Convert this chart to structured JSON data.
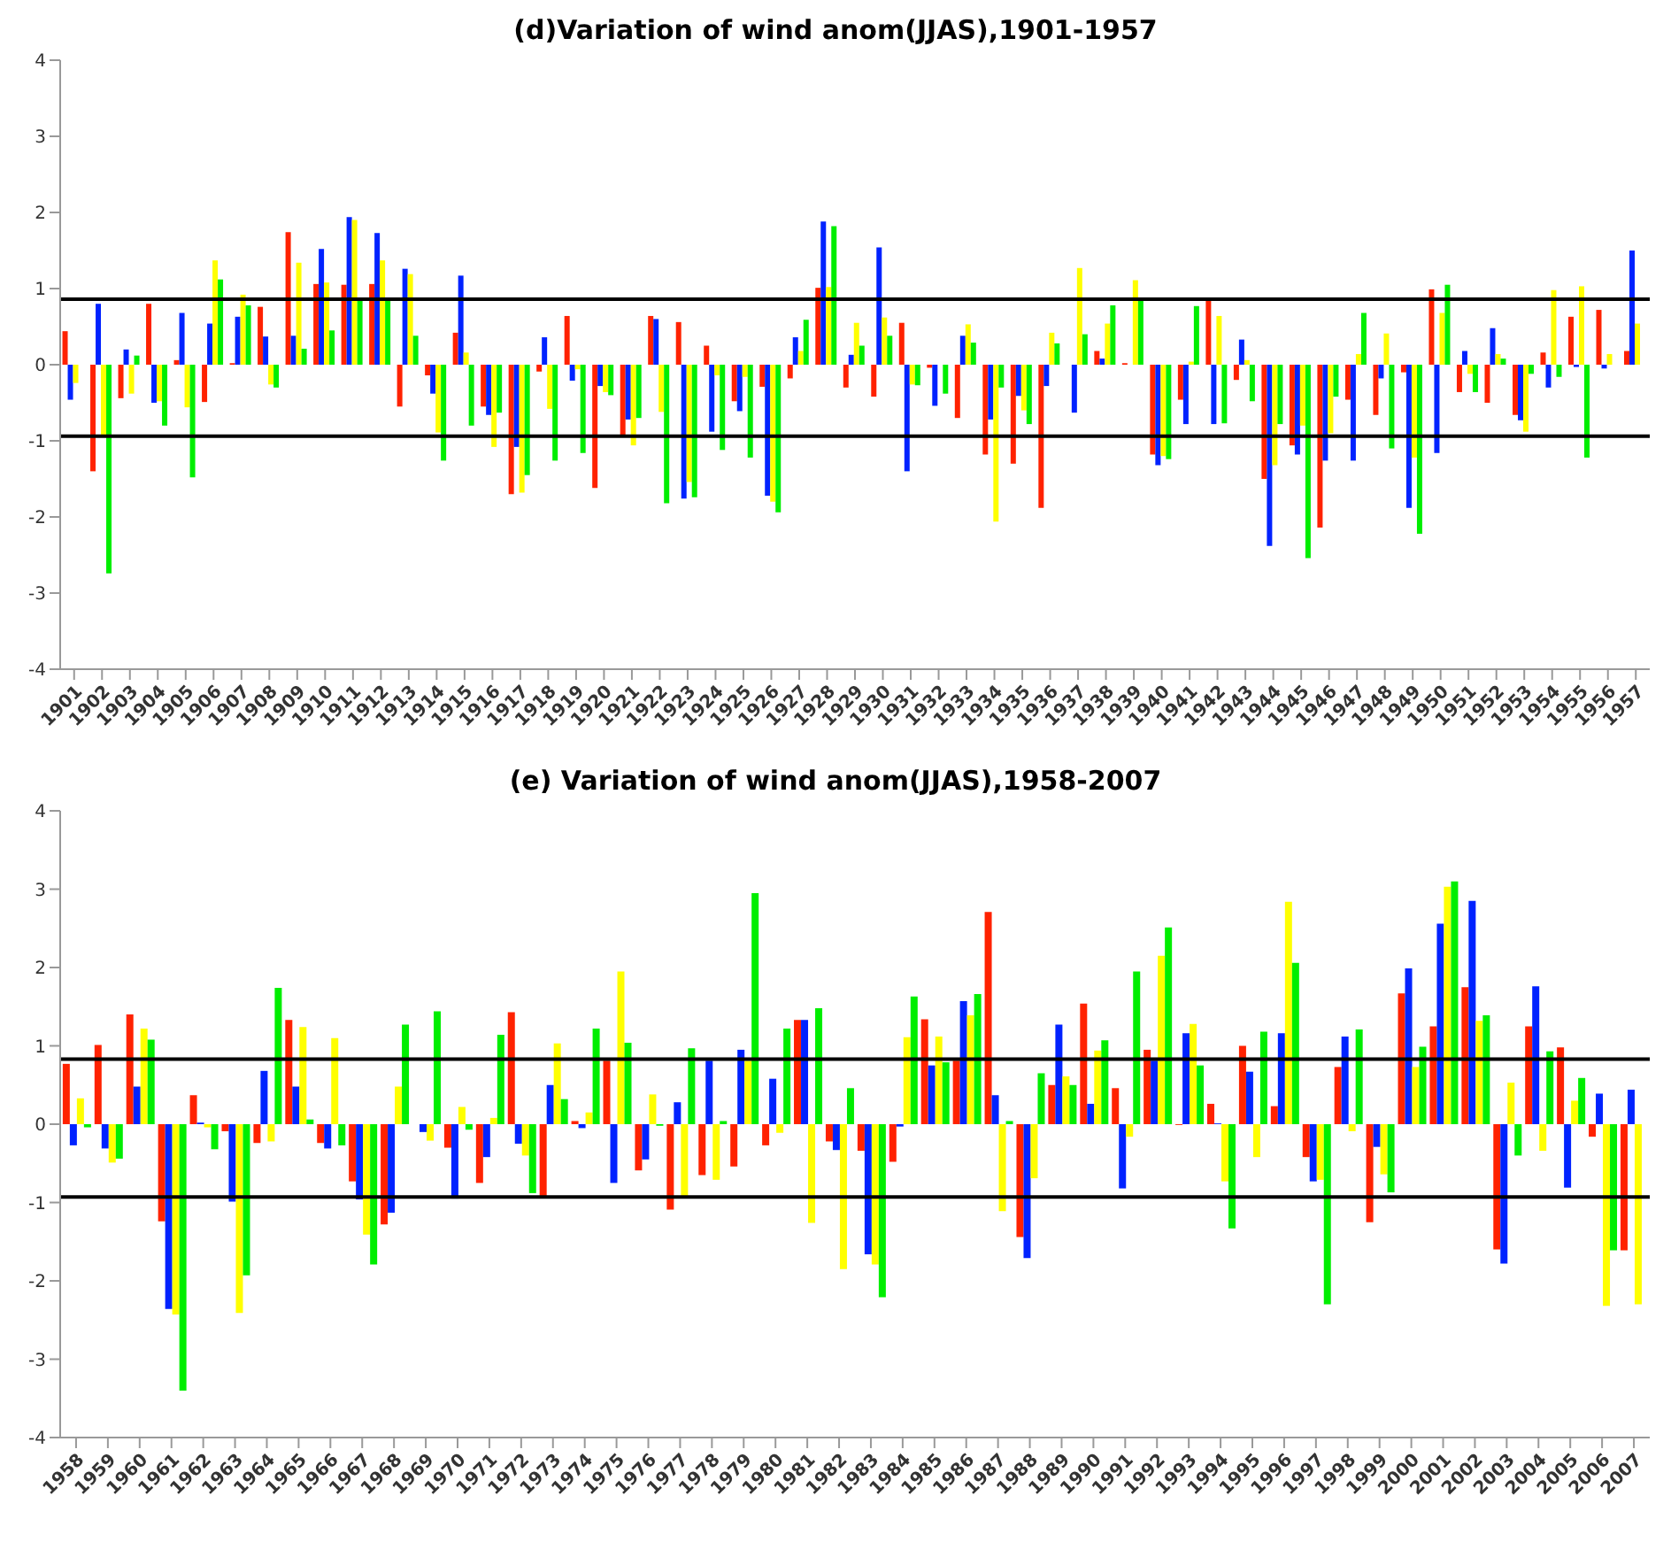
{
  "chart_data": [
    {
      "type": "bar",
      "title": "(d)Variation of wind anom(JJAS),1901-1957",
      "categories": [
        "1901",
        "1902",
        "1903",
        "1904",
        "1905",
        "1906",
        "1907",
        "1908",
        "1909",
        "1910",
        "1911",
        "1912",
        "1913",
        "1914",
        "1915",
        "1916",
        "1917",
        "1918",
        "1919",
        "1920",
        "1921",
        "1922",
        "1923",
        "1924",
        "1925",
        "1926",
        "1927",
        "1928",
        "1929",
        "1930",
        "1931",
        "1932",
        "1933",
        "1934",
        "1935",
        "1936",
        "1937",
        "1938",
        "1939",
        "1940",
        "1941",
        "1942",
        "1943",
        "1944",
        "1945",
        "1946",
        "1947",
        "1948",
        "1949",
        "1950",
        "1951",
        "1952",
        "1953",
        "1954",
        "1955",
        "1956",
        "1957"
      ],
      "series": [
        {
          "color": "#ff2200",
          "values": [
            0.44,
            -1.4,
            -0.44,
            0.8,
            0.06,
            -0.49,
            0.02,
            0.76,
            1.74,
            1.06,
            1.05,
            1.06,
            -0.55,
            -0.14,
            0.42,
            -0.55,
            -1.7,
            -0.09,
            0.64,
            -1.62,
            -0.92,
            0.64,
            0.56,
            0.25,
            -0.48,
            -0.29,
            -0.18,
            1.01,
            -0.3,
            -0.42,
            0.55,
            -0.04,
            -0.7,
            -1.18,
            -1.3,
            -1.88,
            0,
            0.18,
            0.02,
            -1.18,
            -0.46,
            0.84,
            -0.2,
            -1.5,
            -1.06,
            -2.14,
            -0.46,
            -0.66,
            -0.1,
            0.99,
            -0.36,
            -0.5,
            -0.66,
            0.16,
            0.63,
            0.72,
            0.18
          ]
        },
        {
          "color": "#0022ff",
          "values": [
            -0.46,
            0.8,
            0.2,
            -0.5,
            0.68,
            0.54,
            0.63,
            0.37,
            0.38,
            1.52,
            1.94,
            1.73,
            1.26,
            -0.38,
            1.17,
            -0.66,
            -1.08,
            0.36,
            -0.21,
            -0.28,
            -0.72,
            0.6,
            -1.76,
            -0.88,
            -0.61,
            -1.72,
            0.36,
            1.88,
            0.13,
            1.54,
            -1.4,
            -0.54,
            0.38,
            -0.72,
            -0.41,
            -0.28,
            -0.63,
            0.08,
            null,
            -1.32,
            -0.78,
            -0.78,
            0.33,
            -2.38,
            -1.18,
            -1.26,
            -1.26,
            -0.18,
            -1.88,
            -1.16,
            0.18,
            0.48,
            -0.73,
            -0.3,
            -0.03,
            -0.05,
            1.5
          ]
        },
        {
          "color": "#ffff00",
          "values": [
            -0.24,
            -0.92,
            -0.38,
            -0.48,
            -0.56,
            1.37,
            0.92,
            -0.26,
            1.34,
            1.08,
            1.9,
            1.37,
            1.19,
            -0.89,
            0.16,
            -1.08,
            -1.68,
            -0.58,
            -0.06,
            -0.36,
            -1.06,
            -0.62,
            -1.54,
            -0.14,
            -0.16,
            -1.8,
            0.18,
            1.02,
            0.55,
            0.62,
            -0.26,
            0,
            0.53,
            -2.06,
            -0.6,
            0.42,
            1.27,
            0.54,
            1.11,
            -1.2,
            0.04,
            0.64,
            0.06,
            -1.32,
            -0.8,
            -0.9,
            0.14,
            0.41,
            -1.22,
            0.68,
            -0.12,
            0.14,
            -0.88,
            0.98,
            1.03,
            0.14,
            0.54
          ]
        },
        {
          "color": "#00ee00",
          "values": [
            0,
            -2.74,
            0.12,
            -0.8,
            -1.48,
            1.12,
            0.78,
            -0.3,
            0.21,
            0.45,
            0.84,
            0.84,
            0.38,
            -1.26,
            -0.8,
            -0.63,
            -1.45,
            -1.26,
            -1.16,
            -0.4,
            -0.7,
            -1.82,
            -1.74,
            -1.12,
            -1.22,
            -1.94,
            0.59,
            1.82,
            0.25,
            0.38,
            -0.27,
            -0.38,
            0.29,
            -0.3,
            -0.78,
            0.28,
            0.4,
            0.78,
            0.88,
            -1.24,
            0.77,
            -0.77,
            -0.48,
            -0.78,
            -2.54,
            -0.42,
            0.68,
            -1.1,
            -2.22,
            1.05,
            -0.36,
            0.08,
            -0.12,
            -0.16,
            -1.22,
            null,
            null
          ]
        }
      ],
      "ylim": [
        -4,
        4
      ],
      "yticks": [
        -4,
        -3,
        -2,
        -1,
        0,
        1,
        2,
        3,
        4
      ],
      "ref_lines": [
        {
          "axis": "y",
          "value": 0.86,
          "color": "#000000"
        },
        {
          "axis": "y",
          "value": -0.94,
          "color": "#000000"
        }
      ]
    },
    {
      "type": "bar",
      "title": "(e) Variation of wind anom(JJAS),1958-2007",
      "categories": [
        "1958",
        "1959",
        "1960",
        "1961",
        "1962",
        "1963",
        "1964",
        "1965",
        "1966",
        "1967",
        "1968",
        "1969",
        "1970",
        "1971",
        "1972",
        "1973",
        "1974",
        "1975",
        "1976",
        "1977",
        "1978",
        "1979",
        "1980",
        "1981",
        "1982",
        "1983",
        "1984",
        "1985",
        "1986",
        "1987",
        "1988",
        "1989",
        "1990",
        "1991",
        "1992",
        "1993",
        "1994",
        "1995",
        "1996",
        "1997",
        "1998",
        "1999",
        "2000",
        "2001",
        "2002",
        "2003",
        "2004",
        "2005",
        "2006",
        "2007"
      ],
      "series": [
        {
          "color": "#ff2200",
          "values": [
            0.77,
            1.01,
            1.4,
            -1.24,
            0.37,
            -0.09,
            -0.24,
            1.33,
            -0.24,
            -0.73,
            -1.28,
            0,
            -0.3,
            -0.75,
            1.43,
            -0.92,
            0.04,
            0.81,
            -0.59,
            -1.09,
            -0.65,
            -0.54,
            -0.27,
            1.33,
            -0.22,
            -0.34,
            -0.48,
            1.34,
            0.81,
            2.71,
            -1.44,
            0.5,
            1.54,
            0.46,
            0.95,
            -0.01,
            0.26,
            1.0,
            0.23,
            -0.42,
            0.73,
            -1.25,
            1.67,
            1.25,
            1.75,
            -1.6,
            1.25,
            0.98,
            -0.16,
            -1.61
          ]
        },
        {
          "color": "#0022ff",
          "values": [
            -0.27,
            -0.31,
            0.48,
            -2.36,
            0.02,
            -0.99,
            0.68,
            0.48,
            -0.31,
            -0.96,
            -1.13,
            -0.1,
            -0.95,
            -0.42,
            -0.25,
            0.5,
            -0.05,
            -0.75,
            -0.45,
            0.28,
            0.81,
            0.95,
            0.58,
            1.33,
            -0.33,
            -1.66,
            -0.03,
            0.75,
            1.57,
            0.37,
            -1.71,
            1.27,
            0.26,
            -0.82,
            0.81,
            1.16,
            0.01,
            0.67,
            1.16,
            -0.73,
            1.12,
            -0.29,
            1.99,
            2.56,
            2.85,
            -1.78,
            1.76,
            -0.81,
            0.39,
            0.44
          ]
        },
        {
          "color": "#ffff00",
          "values": [
            0.33,
            -0.49,
            1.22,
            -2.43,
            -0.04,
            -2.41,
            -0.22,
            1.24,
            1.1,
            -1.41,
            0.48,
            -0.21,
            0.22,
            0.08,
            -0.4,
            1.03,
            0.15,
            1.95,
            0.38,
            -0.93,
            -0.71,
            0.81,
            -0.11,
            -1.26,
            -1.85,
            -1.79,
            1.11,
            1.12,
            1.39,
            -1.11,
            -0.69,
            0.61,
            0.94,
            -0.16,
            2.15,
            1.28,
            -0.73,
            -0.42,
            2.84,
            -0.71,
            -0.09,
            -0.64,
            0.73,
            3.03,
            1.32,
            0.53,
            -0.34,
            0.3,
            -2.32,
            -2.3
          ]
        },
        {
          "color": "#00ee00",
          "values": [
            -0.04,
            -0.44,
            1.08,
            -3.4,
            -0.32,
            -1.93,
            1.74,
            0.06,
            -0.27,
            -1.79,
            1.27,
            1.44,
            -0.07,
            1.14,
            -0.88,
            0.32,
            1.22,
            1.04,
            -0.02,
            0.97,
            0.04,
            2.95,
            1.22,
            1.48,
            0.46,
            -2.21,
            1.63,
            0.79,
            1.66,
            0.04,
            0.65,
            0.5,
            1.07,
            1.95,
            2.51,
            0.75,
            -1.33,
            1.18,
            2.06,
            -2.3,
            1.21,
            -0.87,
            0.99,
            3.1,
            1.39,
            -0.4,
            0.93,
            0.59,
            -1.61,
            null
          ]
        }
      ],
      "ylim": [
        -4,
        4
      ],
      "yticks": [
        -4,
        -3,
        -2,
        -1,
        0,
        1,
        2,
        3,
        4
      ],
      "ref_lines": [
        {
          "axis": "y",
          "value": 0.83,
          "color": "#000000"
        },
        {
          "axis": "y",
          "value": -0.93,
          "color": "#000000"
        }
      ]
    }
  ]
}
